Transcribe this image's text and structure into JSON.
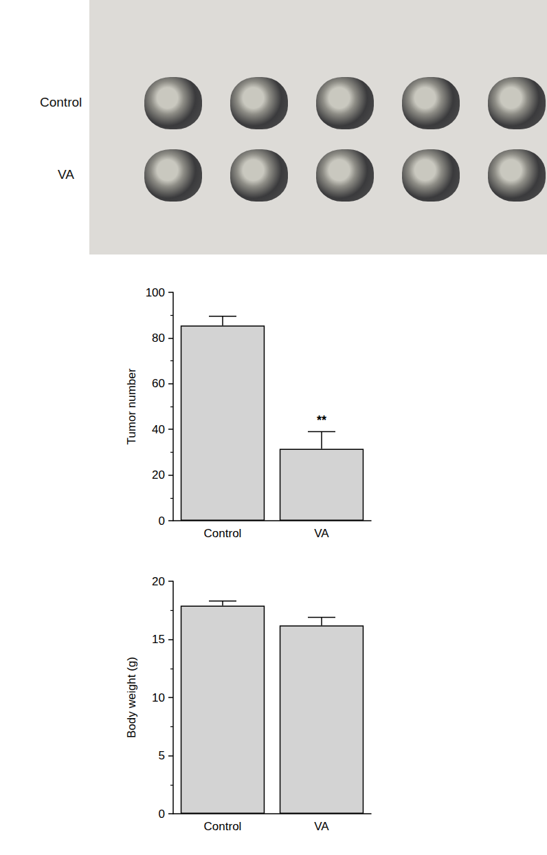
{
  "photo": {
    "rows": [
      "Control",
      "VA"
    ]
  },
  "chart_data": [
    {
      "type": "bar",
      "y_label": "Tumor number",
      "categories": [
        "Control",
        "VA"
      ],
      "values": [
        85.5,
        31.5
      ],
      "errors": [
        4,
        7.5
      ],
      "significance": [
        null,
        "**"
      ],
      "color": "#d3d3d3",
      "ylim": [
        0,
        100
      ],
      "yticks": [
        0,
        20,
        40,
        60,
        80,
        100
      ],
      "grid": false
    },
    {
      "type": "bar",
      "y_label": "Body weight (g)",
      "categories": [
        "Control",
        "VA"
      ],
      "values": [
        17.9,
        16.2
      ],
      "errors": [
        0.4,
        0.7
      ],
      "color": "#d3d3d3",
      "ylim": [
        0,
        20
      ],
      "yticks": [
        0,
        5,
        10,
        15,
        20
      ],
      "grid": false
    }
  ]
}
